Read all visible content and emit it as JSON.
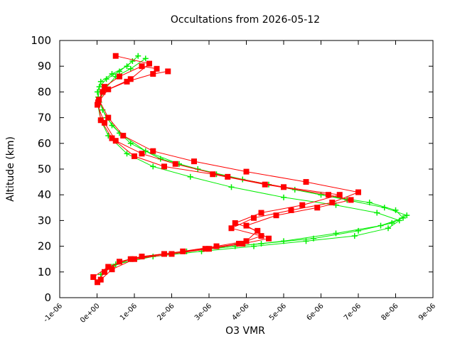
{
  "chart_data": {
    "type": "scatter",
    "title": "Occultations from 2026-05-12",
    "xlabel": "O3 VMR",
    "ylabel": "Altitude (km)",
    "xlim": [
      -1e-06,
      9e-06
    ],
    "ylim": [
      0,
      100
    ],
    "x_ticks": [
      -1e-06,
      0,
      1e-06,
      2e-06,
      3e-06,
      4e-06,
      5e-06,
      6e-06,
      7e-06,
      8e-06,
      9e-06
    ],
    "x_tick_labels": [
      "-1e-06",
      "0e+00",
      "1e-06",
      "2e-06",
      "3e-06",
      "4e-06",
      "5e-06",
      "6e-06",
      "7e-06",
      "8e-06",
      "9e-06"
    ],
    "y_ticks": [
      0,
      10,
      20,
      30,
      40,
      50,
      60,
      70,
      80,
      90,
      100
    ],
    "y_tick_labels": [
      "0",
      "10",
      "20",
      "30",
      "40",
      "50",
      "60",
      "70",
      "80",
      "90",
      "100"
    ],
    "grid": false,
    "legend": "none",
    "series": [
      {
        "color": "#00ee00",
        "marker": "plus",
        "profiles": [
          {
            "x": [
              2e-07,
              6e-07,
              1.2e-06,
              2.4e-06,
              3.7e-06,
              5e-06,
              6.4e-06,
              7.6e-06,
              8.2e-06,
              8e-06,
              7.3e-06,
              6e-06,
              4.6e-06,
              3.2e-06,
              2.2e-06,
              1.3e-06,
              6e-07,
              2.5e-07,
              6e-08,
              1e-08,
              1e-07,
              4e-07,
              8e-07,
              1.1e-06
            ],
            "y": [
              10,
              14,
              16,
              18,
              20,
              22,
              25,
              28,
              31,
              34,
              37,
              40,
              44,
              48,
              52,
              57,
              64,
              70,
              76,
              80,
              84,
              87,
              90,
              94
            ]
          },
          {
            "x": [
              4e-07,
              9e-07,
              1.8e-06,
              3e-06,
              4.4e-06,
              5.8e-06,
              7e-06,
              7.9e-06,
              8.3e-06,
              7.7e-06,
              6.7e-06,
              5.3e-06,
              3.9e-06,
              2.7e-06,
              1.7e-06,
              9e-07,
              4e-07,
              1.5e-07,
              3e-08,
              6e-08,
              2.5e-07,
              6e-07,
              9.5e-07
            ],
            "y": [
              12,
              15,
              17,
              19,
              21,
              23,
              26,
              29,
              32,
              35,
              38,
              42,
              46,
              50,
              54,
              60,
              67,
              73,
              78,
              82,
              85,
              88,
              92
            ]
          },
          {
            "x": [
              1e-07,
              5e-07,
              1.5e-06,
              2.8e-06,
              4.2e-06,
              5.6e-06,
              6.9e-06,
              7.8e-06,
              8.1e-06,
              7.5e-06,
              6.4e-06,
              5e-06,
              3.6e-06,
              2.5e-06,
              1.5e-06,
              8e-07,
              3e-07,
              1e-07,
              2e-08,
              2e-07,
              5e-07,
              9e-07,
              1.3e-06
            ],
            "y": [
              9,
              13,
              16,
              18,
              20,
              22,
              24,
              27,
              30,
              33,
              36,
              39,
              43,
              47,
              51,
              56,
              63,
              69,
              75,
              81,
              86,
              89,
              93
            ]
          }
        ]
      },
      {
        "color": "#ff0000",
        "marker": "square",
        "profiles": [
          {
            "x": [
              1e-08,
              2e-07,
              6e-07,
              1.2e-06,
              2.3e-06,
              3.2e-06,
              4e-06,
              4.3e-06,
              3.7e-06,
              4.4e-06,
              5.5e-06,
              6.5e-06,
              5e-06,
              3.5e-06,
              2.1e-06,
              1.2e-06,
              5e-07,
              2e-07,
              1e-08,
              1.5e-07,
              8e-07,
              1.5e-06,
              1.9e-06
            ],
            "y": [
              6,
              10,
              14,
              16,
              18,
              20,
              22,
              26,
              29,
              33,
              36,
              40,
              43,
              47,
              52,
              56,
              61,
              68,
              75,
              80,
              84,
              87,
              88
            ]
          },
          {
            "x": [
              -1e-07,
              3e-07,
              9e-07,
              1.8e-06,
              2.9e-06,
              3.8e-06,
              4.4e-06,
              3.6e-06,
              4.2e-06,
              5.2e-06,
              6.3e-06,
              7e-06,
              5.6e-06,
              4e-06,
              2.6e-06,
              1.5e-06,
              7e-07,
              3e-07,
              5e-08,
              2e-07,
              6e-07,
              1.2e-06,
              1.6e-06
            ],
            "y": [
              8,
              12,
              15,
              17,
              19,
              21,
              24,
              27,
              31,
              34,
              37,
              41,
              45,
              49,
              53,
              57,
              63,
              70,
              77,
              82,
              86,
              90,
              89
            ]
          },
          {
            "x": [
              1e-07,
              4e-07,
              1e-06,
              2e-06,
              3e-06,
              3.9e-06,
              4.6e-06,
              4e-06,
              4.8e-06,
              5.9e-06,
              6.8e-06,
              6.2e-06,
              4.5e-06,
              3.1e-06,
              1.8e-06,
              1e-06,
              4e-07,
              1e-07,
              3e-08,
              3e-07,
              9e-07,
              1.4e-06,
              5e-07
            ],
            "y": [
              7,
              11,
              15,
              17,
              19,
              21,
              23,
              28,
              32,
              35,
              38,
              40,
              44,
              48,
              51,
              55,
              62,
              69,
              76,
              81,
              85,
              91,
              94
            ]
          }
        ]
      }
    ]
  }
}
